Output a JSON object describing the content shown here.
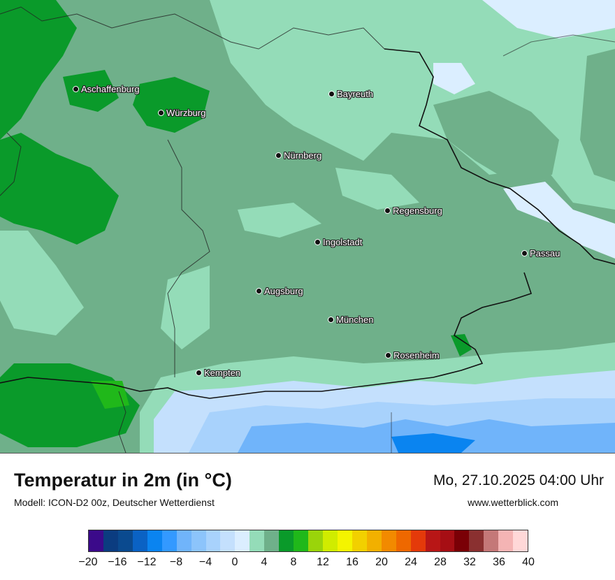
{
  "title": "Temperatur in 2m (in °C)",
  "subtitle": "Modell: ICON-D2 00z, Deutscher Wetterdienst",
  "datetime": "Mo, 27.10.2025 04:00 Uhr",
  "website": "www.wetterblick.com",
  "cities": [
    {
      "name": "Aschaffenburg"
    },
    {
      "name": "Würzburg"
    },
    {
      "name": "Bayreuth"
    },
    {
      "name": "Nürnberg"
    },
    {
      "name": "Regensburg"
    },
    {
      "name": "Ingolstadt"
    },
    {
      "name": "Passau"
    },
    {
      "name": "Augsburg"
    },
    {
      "name": "München"
    },
    {
      "name": "Rosenheim"
    },
    {
      "name": "Kempten"
    }
  ],
  "legend": {
    "colors": [
      "#3b0a8a",
      "#0b3c80",
      "#0a4a8f",
      "#0a62c4",
      "#0a84f0",
      "#3399ff",
      "#70b4fa",
      "#8cc4fb",
      "#a8d2fc",
      "#c4e0fd",
      "#dbeeff",
      "#94dcb8",
      "#6fb08a",
      "#0a9a2a",
      "#20b81a",
      "#9ad40a",
      "#d0ec00",
      "#f4f400",
      "#f2d000",
      "#f2b000",
      "#f28a00",
      "#ee6800",
      "#e43a0a",
      "#b81616",
      "#a60e14",
      "#7a0006",
      "#8a3030",
      "#c47878",
      "#f4b4b4",
      "#ffd8d8"
    ],
    "ticks": [
      "−20",
      "−16",
      "−12",
      "−8",
      "−4",
      "0",
      "4",
      "8",
      "12",
      "16",
      "20",
      "24",
      "28",
      "32",
      "36",
      "40"
    ]
  }
}
